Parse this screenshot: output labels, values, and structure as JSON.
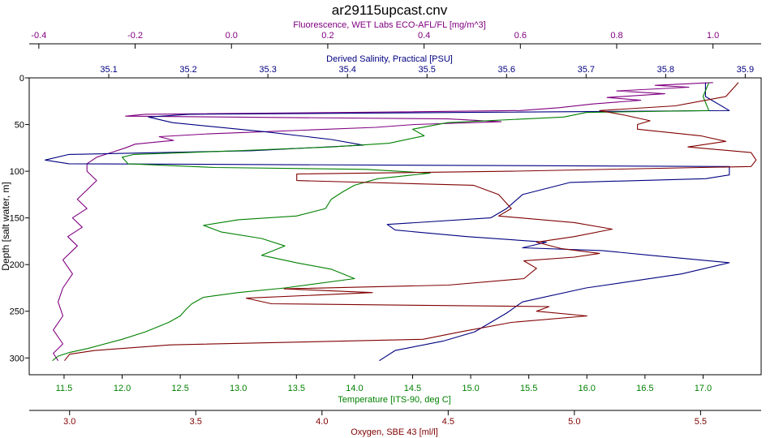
{
  "chart_data": {
    "type": "line",
    "title": "ar29115upcast.cnv",
    "ylabel": "Depth [salt water, m]",
    "ylim": [
      0,
      318
    ],
    "y_ticks": [
      0,
      50,
      100,
      150,
      200,
      250,
      300
    ],
    "y_inverted": true,
    "grid": false,
    "legend": "none",
    "axes": [
      {
        "id": "fluor",
        "label": "Fluorescence, WET Labs ECO-AFL/FL [mg/m^3]",
        "position": "top",
        "range": [
          -0.42,
          1.1
        ],
        "ticks": [
          -0.4,
          -0.2,
          0.0,
          0.2,
          0.4,
          0.6,
          0.8,
          1.0
        ],
        "tick_labels": [
          "-0.4",
          "-0.2",
          "0.0",
          "0.2",
          "0.4",
          "0.6",
          "0.8",
          "1.0"
        ],
        "color": "#800080"
      },
      {
        "id": "sal",
        "label": "Derived Salinity, Practical [PSU]",
        "position": "top",
        "range": [
          35.0,
          35.92
        ],
        "ticks": [
          35.1,
          35.2,
          35.3,
          35.4,
          35.5,
          35.6,
          35.7,
          35.8,
          35.9
        ],
        "tick_labels": [
          "35.1",
          "35.2",
          "35.3",
          "35.4",
          "35.5",
          "35.6",
          "35.7",
          "35.8",
          "35.9"
        ],
        "color": "#000080"
      },
      {
        "id": "temp",
        "label": "Temperature [ITS-90, deg C]",
        "position": "bottom",
        "range": [
          11.2,
          17.5
        ],
        "ticks": [
          11.5,
          12.0,
          12.5,
          13.0,
          13.5,
          14.0,
          14.5,
          15.0,
          15.5,
          16.0,
          16.5,
          17.0
        ],
        "tick_labels": [
          "11.5",
          "12.0",
          "12.5",
          "13.0",
          "13.5",
          "14.0",
          "14.5",
          "15.0",
          "15.5",
          "16.0",
          "16.5",
          "17.0"
        ],
        "color": "#008000"
      },
      {
        "id": "oxy",
        "label": "Oxygen, SBE 43 [ml/l]",
        "position": "bottom",
        "range": [
          2.84,
          5.74
        ],
        "ticks": [
          3.0,
          3.5,
          4.0,
          4.5,
          5.0,
          5.5
        ],
        "tick_labels": [
          "3.0",
          "3.5",
          "4.0",
          "4.5",
          "5.0",
          "5.5"
        ],
        "color": "#800000"
      }
    ],
    "series": [
      {
        "axis": "fluor",
        "color": "#800080",
        "points": [
          [
            1.0,
            5
          ],
          [
            0.88,
            8
          ],
          [
            0.95,
            10
          ],
          [
            0.8,
            14
          ],
          [
            0.9,
            17
          ],
          [
            0.78,
            21
          ],
          [
            0.85,
            24
          ],
          [
            0.75,
            28
          ],
          [
            0.68,
            32
          ],
          [
            0.6,
            35
          ],
          [
            0.25,
            37
          ],
          [
            -0.18,
            39
          ],
          [
            -0.22,
            41
          ],
          [
            0.45,
            44
          ],
          [
            0.56,
            47
          ],
          [
            0.38,
            50
          ],
          [
            0.3,
            53
          ],
          [
            0.15,
            56
          ],
          [
            0.05,
            58
          ],
          [
            -0.05,
            60
          ],
          [
            -0.15,
            63
          ],
          [
            -0.12,
            67
          ],
          [
            -0.2,
            71
          ],
          [
            -0.22,
            75
          ],
          [
            -0.25,
            80
          ],
          [
            -0.28,
            85
          ],
          [
            -0.3,
            92
          ],
          [
            -0.3,
            100
          ],
          [
            -0.28,
            110
          ],
          [
            -0.3,
            120
          ],
          [
            -0.32,
            130
          ],
          [
            -0.3,
            140
          ],
          [
            -0.33,
            150
          ],
          [
            -0.31,
            160
          ],
          [
            -0.34,
            170
          ],
          [
            -0.32,
            180
          ],
          [
            -0.35,
            195
          ],
          [
            -0.33,
            210
          ],
          [
            -0.35,
            225
          ],
          [
            -0.36,
            240
          ],
          [
            -0.35,
            255
          ],
          [
            -0.37,
            270
          ],
          [
            -0.35,
            285
          ],
          [
            -0.37,
            295
          ],
          [
            -0.36,
            303
          ]
        ]
      },
      {
        "axis": "sal",
        "color": "#000080",
        "points": [
          [
            35.85,
            5
          ],
          [
            35.85,
            20
          ],
          [
            35.88,
            35
          ],
          [
            35.55,
            37
          ],
          [
            35.2,
            39
          ],
          [
            35.15,
            42
          ],
          [
            35.18,
            48
          ],
          [
            35.3,
            58
          ],
          [
            35.38,
            66
          ],
          [
            35.42,
            72
          ],
          [
            35.28,
            78
          ],
          [
            35.05,
            82
          ],
          [
            35.02,
            88
          ],
          [
            35.05,
            92
          ],
          [
            35.88,
            95
          ],
          [
            35.88,
            104
          ],
          [
            35.85,
            108
          ],
          [
            35.68,
            112
          ],
          [
            35.62,
            125
          ],
          [
            35.6,
            140
          ],
          [
            35.58,
            150
          ],
          [
            35.45,
            157
          ],
          [
            35.46,
            163
          ],
          [
            35.55,
            170
          ],
          [
            35.65,
            176
          ],
          [
            35.62,
            182
          ],
          [
            35.72,
            185
          ],
          [
            35.78,
            190
          ],
          [
            35.88,
            198
          ],
          [
            35.82,
            210
          ],
          [
            35.7,
            225
          ],
          [
            35.62,
            240
          ],
          [
            35.6,
            252
          ],
          [
            35.58,
            262
          ],
          [
            35.56,
            272
          ],
          [
            35.52,
            282
          ],
          [
            35.46,
            292
          ],
          [
            35.44,
            303
          ]
        ]
      },
      {
        "axis": "temp",
        "color": "#008000",
        "points": [
          [
            17.05,
            5
          ],
          [
            17.0,
            20
          ],
          [
            17.05,
            35
          ],
          [
            16.0,
            37
          ],
          [
            15.8,
            42
          ],
          [
            14.8,
            48
          ],
          [
            14.5,
            55
          ],
          [
            14.6,
            62
          ],
          [
            14.3,
            70
          ],
          [
            13.8,
            74
          ],
          [
            13.0,
            78
          ],
          [
            12.1,
            82
          ],
          [
            12.0,
            85
          ],
          [
            12.05,
            92
          ],
          [
            12.8,
            96
          ],
          [
            14.1,
            98
          ],
          [
            14.65,
            102
          ],
          [
            14.2,
            108
          ],
          [
            14.0,
            115
          ],
          [
            13.9,
            122
          ],
          [
            13.8,
            130
          ],
          [
            13.75,
            140
          ],
          [
            13.5,
            148
          ],
          [
            13.0,
            152
          ],
          [
            12.7,
            158
          ],
          [
            12.85,
            165
          ],
          [
            13.2,
            172
          ],
          [
            13.4,
            180
          ],
          [
            13.2,
            190
          ],
          [
            13.5,
            198
          ],
          [
            13.8,
            205
          ],
          [
            14.0,
            215
          ],
          [
            13.4,
            225
          ],
          [
            13.0,
            230
          ],
          [
            12.7,
            235
          ],
          [
            12.6,
            242
          ],
          [
            12.55,
            248
          ],
          [
            12.5,
            255
          ],
          [
            12.4,
            262
          ],
          [
            12.2,
            272
          ],
          [
            12.0,
            280
          ],
          [
            11.7,
            290
          ],
          [
            11.55,
            294
          ],
          [
            11.45,
            298
          ],
          [
            11.4,
            303
          ]
        ]
      },
      {
        "axis": "oxy",
        "color": "#800000",
        "points": [
          [
            5.65,
            5
          ],
          [
            5.6,
            20
          ],
          [
            5.4,
            30
          ],
          [
            5.1,
            35
          ],
          [
            5.2,
            40
          ],
          [
            5.3,
            46
          ],
          [
            5.25,
            50
          ],
          [
            5.25,
            55
          ],
          [
            5.5,
            62
          ],
          [
            5.6,
            68
          ],
          [
            5.45,
            74
          ],
          [
            5.7,
            80
          ],
          [
            5.72,
            88
          ],
          [
            5.7,
            95
          ],
          [
            4.75,
            100
          ],
          [
            3.9,
            103
          ],
          [
            3.9,
            110
          ],
          [
            4.6,
            115
          ],
          [
            4.7,
            125
          ],
          [
            4.75,
            140
          ],
          [
            4.7,
            148
          ],
          [
            5.0,
            155
          ],
          [
            5.15,
            162
          ],
          [
            5.0,
            170
          ],
          [
            4.85,
            176
          ],
          [
            4.95,
            183
          ],
          [
            5.1,
            188
          ],
          [
            5.0,
            192
          ],
          [
            4.8,
            196
          ],
          [
            4.85,
            204
          ],
          [
            4.8,
            215
          ],
          [
            4.5,
            222
          ],
          [
            3.85,
            226
          ],
          [
            4.2,
            230
          ],
          [
            3.7,
            236
          ],
          [
            3.8,
            242
          ],
          [
            4.9,
            245
          ],
          [
            4.85,
            250
          ],
          [
            5.05,
            255
          ],
          [
            4.75,
            262
          ],
          [
            4.55,
            272
          ],
          [
            4.4,
            280
          ],
          [
            3.4,
            286
          ],
          [
            3.1,
            292
          ],
          [
            3.0,
            296
          ],
          [
            2.98,
            303
          ]
        ]
      }
    ]
  }
}
